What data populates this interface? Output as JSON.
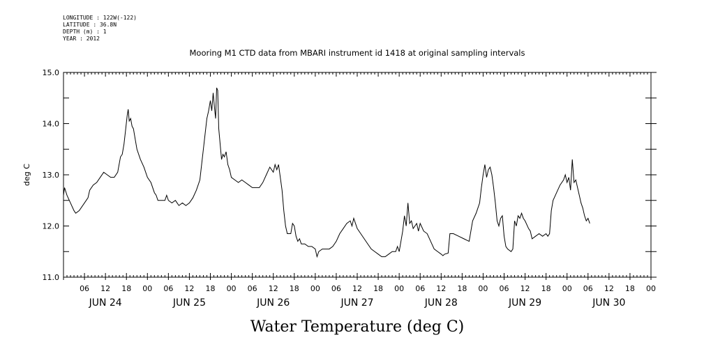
{
  "meta": {
    "longitude": "LONGITUDE : 122W(-122)",
    "latitude": "LATITUDE : 36.8N",
    "depth": "DEPTH (m) : 1",
    "year": "YEAR : 2012"
  },
  "chart_data": {
    "type": "line",
    "title": "Mooring M1 CTD data from MBARI instrument id 1418 at original sampling intervals",
    "xlabel": "Water Temperature (deg C)",
    "ylabel": "deg C",
    "ylim": [
      11.0,
      15.0
    ],
    "yticks": [
      "11.0",
      "12.0",
      "13.0",
      "14.0",
      "15.0"
    ],
    "xlim_hours": [
      0,
      168
    ],
    "hour_ticks": [
      "06",
      "12",
      "18",
      "00",
      "06",
      "12",
      "18",
      "00",
      "06",
      "12",
      "18",
      "00",
      "06",
      "12",
      "18",
      "00",
      "06",
      "12",
      "18",
      "00",
      "06",
      "12",
      "18",
      "00",
      "06",
      "12",
      "18",
      "00"
    ],
    "day_labels": [
      "JUN 24",
      "JUN 25",
      "JUN 26",
      "JUN 27",
      "JUN 28",
      "JUN 29",
      "JUN 30"
    ],
    "grid": false,
    "series": [
      {
        "points": [
          [
            0,
            12.6
          ],
          [
            0.3,
            12.75
          ],
          [
            1,
            12.6
          ],
          [
            2,
            12.45
          ],
          [
            3,
            12.3
          ],
          [
            3.5,
            12.25
          ],
          [
            4.5,
            12.3
          ],
          [
            6,
            12.45
          ],
          [
            7,
            12.55
          ],
          [
            7.5,
            12.7
          ],
          [
            8.5,
            12.8
          ],
          [
            9.5,
            12.85
          ],
          [
            10.5,
            12.95
          ],
          [
            11.5,
            13.05
          ],
          [
            12.5,
            13.0
          ],
          [
            13.5,
            12.95
          ],
          [
            14.5,
            12.95
          ],
          [
            15.5,
            13.05
          ],
          [
            16.3,
            13.35
          ],
          [
            16.8,
            13.4
          ],
          [
            17.3,
            13.6
          ],
          [
            17.8,
            13.9
          ],
          [
            18.2,
            14.15
          ],
          [
            18.5,
            14.28
          ],
          [
            18.8,
            14.05
          ],
          [
            19.2,
            14.1
          ],
          [
            19.6,
            13.95
          ],
          [
            20,
            13.9
          ],
          [
            20.5,
            13.7
          ],
          [
            21,
            13.5
          ],
          [
            22,
            13.3
          ],
          [
            23,
            13.15
          ],
          [
            24,
            12.95
          ],
          [
            25,
            12.85
          ],
          [
            26,
            12.65
          ],
          [
            26.5,
            12.6
          ],
          [
            27,
            12.5
          ],
          [
            28,
            12.5
          ],
          [
            29,
            12.5
          ],
          [
            29.5,
            12.6
          ],
          [
            30,
            12.5
          ],
          [
            31,
            12.45
          ],
          [
            32,
            12.5
          ],
          [
            33,
            12.4
          ],
          [
            34,
            12.45
          ],
          [
            35,
            12.4
          ],
          [
            36,
            12.45
          ],
          [
            37,
            12.55
          ],
          [
            38,
            12.7
          ],
          [
            39,
            12.9
          ],
          [
            39.5,
            13.2
          ],
          [
            40,
            13.5
          ],
          [
            40.5,
            13.8
          ],
          [
            41,
            14.1
          ],
          [
            41.5,
            14.25
          ],
          [
            42,
            14.45
          ],
          [
            42.4,
            14.25
          ],
          [
            42.8,
            14.6
          ],
          [
            43.2,
            14.3
          ],
          [
            43.5,
            14.1
          ],
          [
            43.8,
            14.7
          ],
          [
            44.1,
            14.65
          ],
          [
            44.4,
            13.9
          ],
          [
            44.8,
            13.6
          ],
          [
            45.2,
            13.3
          ],
          [
            45.6,
            13.4
          ],
          [
            46,
            13.35
          ],
          [
            46.5,
            13.45
          ],
          [
            47,
            13.2
          ],
          [
            47.5,
            13.1
          ],
          [
            48,
            12.95
          ],
          [
            49,
            12.9
          ],
          [
            50,
            12.85
          ],
          [
            51,
            12.9
          ],
          [
            52,
            12.85
          ],
          [
            53,
            12.8
          ],
          [
            54,
            12.75
          ],
          [
            55,
            12.75
          ],
          [
            56,
            12.75
          ],
          [
            57,
            12.85
          ],
          [
            58,
            13.0
          ],
          [
            59,
            13.15
          ],
          [
            60,
            13.05
          ],
          [
            60.5,
            13.2
          ],
          [
            61,
            13.1
          ],
          [
            61.5,
            13.2
          ],
          [
            62,
            12.95
          ],
          [
            62.5,
            12.7
          ],
          [
            63,
            12.3
          ],
          [
            63.5,
            12.0
          ],
          [
            64,
            11.85
          ],
          [
            65,
            11.85
          ],
          [
            65.5,
            12.05
          ],
          [
            66,
            12.0
          ],
          [
            66.5,
            11.8
          ],
          [
            67,
            11.7
          ],
          [
            67.5,
            11.75
          ],
          [
            68,
            11.65
          ],
          [
            69,
            11.65
          ],
          [
            70,
            11.6
          ],
          [
            71,
            11.6
          ],
          [
            72,
            11.55
          ],
          [
            72.5,
            11.4
          ],
          [
            73,
            11.5
          ],
          [
            74,
            11.55
          ],
          [
            75,
            11.55
          ],
          [
            76,
            11.55
          ],
          [
            77,
            11.6
          ],
          [
            78,
            11.7
          ],
          [
            79,
            11.85
          ],
          [
            80,
            11.95
          ],
          [
            81,
            12.05
          ],
          [
            82,
            12.1
          ],
          [
            82.5,
            12.0
          ],
          [
            83,
            12.15
          ],
          [
            83.5,
            12.05
          ],
          [
            84,
            11.95
          ],
          [
            85,
            11.85
          ],
          [
            86,
            11.75
          ],
          [
            87,
            11.65
          ],
          [
            88,
            11.55
          ],
          [
            89,
            11.5
          ],
          [
            90,
            11.45
          ],
          [
            91,
            11.4
          ],
          [
            92,
            11.4
          ],
          [
            93,
            11.45
          ],
          [
            94,
            11.5
          ],
          [
            95,
            11.5
          ],
          [
            95.5,
            11.6
          ],
          [
            96,
            11.5
          ],
          [
            96.5,
            11.7
          ],
          [
            97,
            11.9
          ],
          [
            97.5,
            12.2
          ],
          [
            98,
            12.0
          ],
          [
            98.5,
            12.45
          ],
          [
            99,
            12.05
          ],
          [
            99.5,
            12.1
          ],
          [
            100,
            11.95
          ],
          [
            101,
            12.05
          ],
          [
            101.5,
            11.9
          ],
          [
            102,
            12.05
          ],
          [
            103,
            11.9
          ],
          [
            104,
            11.85
          ],
          [
            105,
            11.7
          ],
          [
            106,
            11.55
          ],
          [
            107,
            11.5
          ],
          [
            108,
            11.45
          ],
          [
            108.5,
            11.42
          ],
          [
            109,
            11.45
          ],
          [
            110,
            11.47
          ],
          [
            110.5,
            11.85
          ],
          [
            111.5,
            11.85
          ],
          [
            113,
            11.8
          ],
          [
            114.5,
            11.75
          ],
          [
            116,
            11.7
          ],
          [
            117,
            12.1
          ],
          [
            118,
            12.25
          ],
          [
            119,
            12.45
          ],
          [
            119.5,
            12.75
          ],
          [
            120,
            13.0
          ],
          [
            120.5,
            13.2
          ],
          [
            121,
            12.95
          ],
          [
            121.5,
            13.1
          ],
          [
            122,
            13.15
          ],
          [
            122.5,
            13.0
          ],
          [
            123,
            12.75
          ],
          [
            123.5,
            12.45
          ],
          [
            124,
            12.1
          ],
          [
            124.5,
            12.0
          ],
          [
            125,
            12.15
          ],
          [
            125.5,
            12.2
          ],
          [
            126,
            11.8
          ],
          [
            126.5,
            11.6
          ],
          [
            127,
            11.55
          ],
          [
            128,
            11.5
          ],
          [
            128.5,
            11.55
          ],
          [
            129,
            12.1
          ],
          [
            129.5,
            12.0
          ],
          [
            130,
            12.2
          ],
          [
            130.5,
            12.15
          ],
          [
            131,
            12.25
          ],
          [
            131.5,
            12.15
          ],
          [
            132,
            12.1
          ],
          [
            133,
            11.95
          ],
          [
            133.5,
            11.9
          ],
          [
            134,
            11.75
          ],
          [
            135,
            11.8
          ],
          [
            136,
            11.85
          ],
          [
            137,
            11.8
          ],
          [
            138,
            11.85
          ],
          [
            138.5,
            11.8
          ],
          [
            139,
            11.85
          ],
          [
            139.5,
            12.3
          ],
          [
            140,
            12.5
          ],
          [
            141,
            12.65
          ],
          [
            142,
            12.8
          ],
          [
            143,
            12.9
          ],
          [
            143.5,
            13.0
          ],
          [
            144,
            12.85
          ],
          [
            144.5,
            12.95
          ],
          [
            145,
            12.7
          ],
          [
            145.5,
            13.3
          ],
          [
            146,
            12.85
          ],
          [
            146.5,
            12.9
          ],
          [
            147,
            12.75
          ],
          [
            147.5,
            12.6
          ],
          [
            148,
            12.45
          ],
          [
            148.5,
            12.35
          ],
          [
            149,
            12.2
          ],
          [
            149.5,
            12.1
          ],
          [
            150,
            12.15
          ],
          [
            150.5,
            12.05
          ]
        ]
      }
    ]
  }
}
